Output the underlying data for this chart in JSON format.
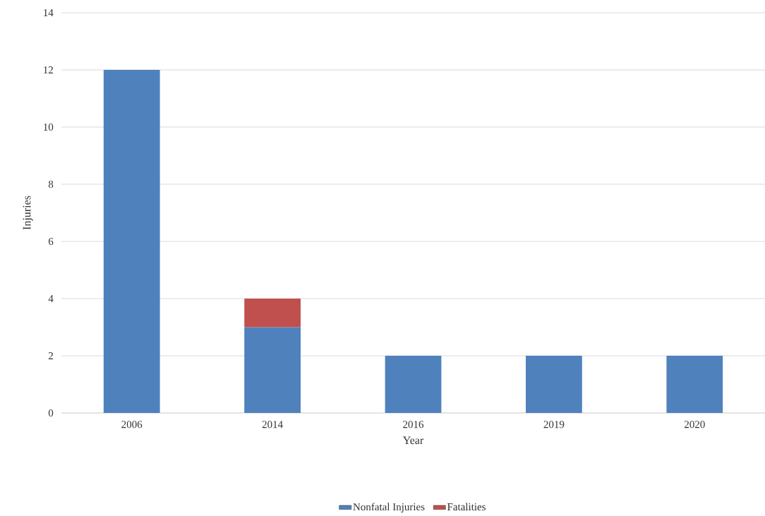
{
  "chart_data": {
    "type": "bar",
    "stacked": true,
    "xlabel": "Year",
    "ylabel": "Injuries",
    "categories": [
      "2006",
      "2014",
      "2016",
      "2019",
      "2020"
    ],
    "series": [
      {
        "name": "Nonfatal Injuries",
        "color": "#4f81bd",
        "values": [
          12,
          3,
          2,
          2,
          2
        ]
      },
      {
        "name": "Fatalities",
        "color": "#c0504d",
        "values": [
          null,
          1,
          null,
          null,
          null
        ]
      }
    ],
    "ylim": [
      0,
      14
    ],
    "yticks": [
      0,
      2,
      4,
      6,
      8,
      10,
      12,
      14
    ],
    "grid": "y",
    "legend": "bottom"
  }
}
